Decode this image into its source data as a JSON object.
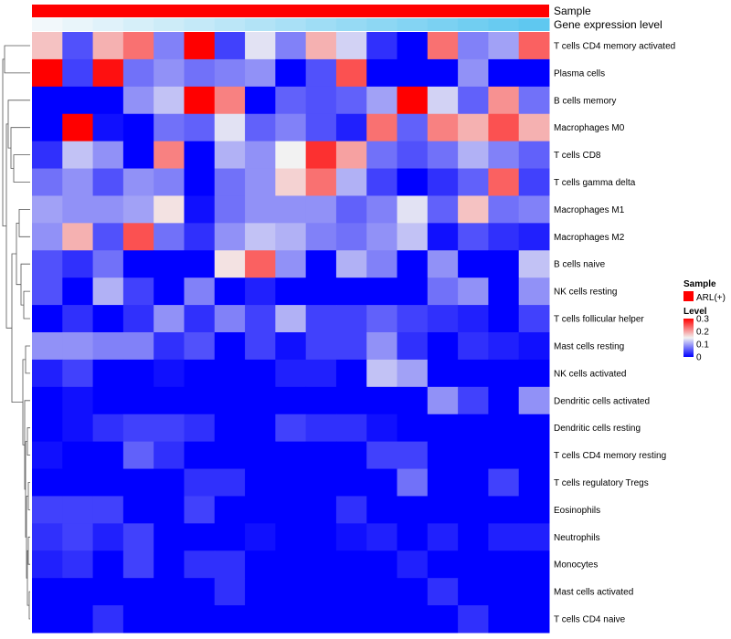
{
  "chart_data": {
    "type": "heatmap",
    "annotations": {
      "sample_label": "Sample",
      "expression_label": "Gene expression level",
      "sample_color": "#FF0000",
      "expression_gradient": [
        "#F2F8FB",
        "#5FC8F0"
      ]
    },
    "rows": [
      "T cells CD4 memory activated",
      "Plasma cells",
      "B cells memory",
      "Macrophages M0",
      "T cells CD8",
      "T cells gamma delta",
      "Macrophages M1",
      "Macrophages M2",
      "B cells naive",
      "NK cells resting",
      "T cells follicular helper",
      "Mast cells resting",
      "NK cells activated",
      "Dendritic cells activated",
      "Dendritic cells resting",
      "T cells CD4 memory resting",
      "T cells regulatory  Tregs",
      "Eosinophils",
      "Neutrophils",
      "Monocytes",
      "Mast cells activated",
      "T cells CD4 naive"
    ],
    "values": [
      [
        0.18,
        0.05,
        0.19,
        0.23,
        0.08,
        0.3,
        0.04,
        0.14,
        0.08,
        0.19,
        0.13,
        0.03,
        0.0,
        0.23,
        0.08,
        0.1,
        0.24
      ],
      [
        0.3,
        0.04,
        0.29,
        0.07,
        0.09,
        0.07,
        0.08,
        0.09,
        0.0,
        0.05,
        0.25,
        0.0,
        0.0,
        0.0,
        0.09,
        0.0,
        0.0
      ],
      [
        0.0,
        0.0,
        0.0,
        0.09,
        0.12,
        0.3,
        0.22,
        0.0,
        0.06,
        0.05,
        0.06,
        0.1,
        0.3,
        0.13,
        0.06,
        0.21,
        0.07
      ],
      [
        0.0,
        0.3,
        0.01,
        0.0,
        0.07,
        0.06,
        0.14,
        0.06,
        0.08,
        0.05,
        0.02,
        0.23,
        0.06,
        0.22,
        0.19,
        0.25,
        0.19
      ],
      [
        0.03,
        0.12,
        0.09,
        0.0,
        0.22,
        0.0,
        0.11,
        0.09,
        0.15,
        0.27,
        0.2,
        0.07,
        0.05,
        0.07,
        0.11,
        0.08,
        0.06
      ],
      [
        0.07,
        0.09,
        0.05,
        0.09,
        0.08,
        0.0,
        0.07,
        0.09,
        0.17,
        0.23,
        0.11,
        0.04,
        0.0,
        0.03,
        0.06,
        0.24,
        0.04
      ],
      [
        0.1,
        0.09,
        0.09,
        0.1,
        0.16,
        0.01,
        0.07,
        0.09,
        0.09,
        0.09,
        0.06,
        0.08,
        0.14,
        0.06,
        0.18,
        0.07,
        0.08
      ],
      [
        0.09,
        0.19,
        0.05,
        0.25,
        0.07,
        0.03,
        0.09,
        0.12,
        0.11,
        0.08,
        0.07,
        0.09,
        0.12,
        0.01,
        0.05,
        0.03,
        0.02
      ],
      [
        0.05,
        0.03,
        0.07,
        0.0,
        0.0,
        0.0,
        0.16,
        0.24,
        0.09,
        0.0,
        0.11,
        0.08,
        0.0,
        0.09,
        0.0,
        0.0,
        0.12
      ],
      [
        0.05,
        0.0,
        0.11,
        0.04,
        0.0,
        0.08,
        0.0,
        0.02,
        0.0,
        0.0,
        0.0,
        0.0,
        0.0,
        0.07,
        0.09,
        0.0,
        0.09
      ],
      [
        0.0,
        0.03,
        0.0,
        0.03,
        0.09,
        0.03,
        0.08,
        0.04,
        0.11,
        0.04,
        0.04,
        0.06,
        0.04,
        0.03,
        0.02,
        0.0,
        0.04
      ],
      [
        0.09,
        0.09,
        0.08,
        0.08,
        0.03,
        0.05,
        0.0,
        0.04,
        0.01,
        0.04,
        0.04,
        0.09,
        0.03,
        0.0,
        0.03,
        0.02,
        0.01
      ],
      [
        0.02,
        0.04,
        0.0,
        0.0,
        0.01,
        0.0,
        0.0,
        0.0,
        0.02,
        0.02,
        0.0,
        0.12,
        0.1,
        0.0,
        0.0,
        0.0,
        0.0
      ],
      [
        0.0,
        0.01,
        0.0,
        0.0,
        0.0,
        0.0,
        0.0,
        0.0,
        0.0,
        0.0,
        0.0,
        0.0,
        0.0,
        0.09,
        0.04,
        0.0,
        0.09
      ],
      [
        0.0,
        0.01,
        0.03,
        0.04,
        0.04,
        0.03,
        0.0,
        0.0,
        0.04,
        0.03,
        0.03,
        0.01,
        0.0,
        0.0,
        0.0,
        0.0,
        0.0
      ],
      [
        0.01,
        0.0,
        0.0,
        0.06,
        0.03,
        0.0,
        0.0,
        0.0,
        0.0,
        0.0,
        0.0,
        0.04,
        0.04,
        0.0,
        0.0,
        0.0,
        0.0
      ],
      [
        0.0,
        0.0,
        0.0,
        0.0,
        0.0,
        0.03,
        0.03,
        0.0,
        0.0,
        0.0,
        0.0,
        0.0,
        0.07,
        0.0,
        0.0,
        0.04,
        0.0
      ],
      [
        0.04,
        0.04,
        0.04,
        0.0,
        0.0,
        0.04,
        0.0,
        0.0,
        0.0,
        0.0,
        0.03,
        0.0,
        0.0,
        0.0,
        0.0,
        0.0,
        0.0
      ],
      [
        0.03,
        0.04,
        0.02,
        0.04,
        0.0,
        0.0,
        0.0,
        0.01,
        0.0,
        0.0,
        0.01,
        0.02,
        0.0,
        0.02,
        0.0,
        0.02,
        0.02
      ],
      [
        0.02,
        0.03,
        0.0,
        0.04,
        0.0,
        0.03,
        0.03,
        0.0,
        0.0,
        0.0,
        0.0,
        0.0,
        0.02,
        0.0,
        0.0,
        0.0,
        0.0
      ],
      [
        0.0,
        0.0,
        0.0,
        0.0,
        0.0,
        0.0,
        0.03,
        0.0,
        0.0,
        0.0,
        0.0,
        0.0,
        0.0,
        0.03,
        0.0,
        0.0,
        0.0
      ],
      [
        0.0,
        0.0,
        0.03,
        0.0,
        0.0,
        0.0,
        0.0,
        0.0,
        0.0,
        0.0,
        0.0,
        0.0,
        0.0,
        0.0,
        0.03,
        0.0,
        0.0
      ]
    ],
    "color_scale": {
      "min": 0,
      "max": 0.3,
      "stops": [
        {
          "value": 0,
          "color": "#0000FF"
        },
        {
          "value": 0.15,
          "color": "#F2F2F2"
        },
        {
          "value": 0.3,
          "color": "#FF0000"
        }
      ]
    }
  },
  "legend": {
    "sample_title": "Sample",
    "sample_item": "ARL(+)",
    "level_title": "Level",
    "ticks": [
      "0.3",
      "0.2",
      "0.1",
      "0"
    ]
  }
}
